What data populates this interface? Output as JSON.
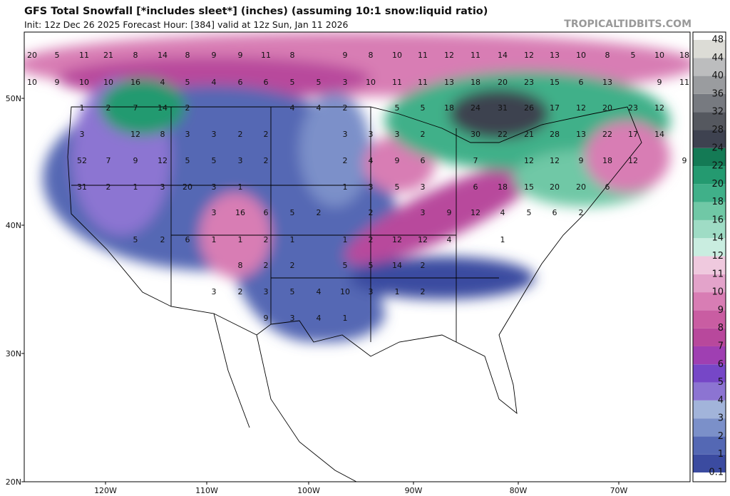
{
  "header": {
    "title": "GFS Total Snowfall [*includes sleet*] (inches) (assuming 10:1 snow:liquid ratio)",
    "subtitle": "Init: 12z Dec 26 2025   Forecast Hour: [384]   valid at 12z Sun, Jan 11 2026",
    "watermark": "TROPICALTIDBITS.COM"
  },
  "lat_labels": [
    "50N",
    "40N",
    "30N",
    "20N"
  ],
  "lon_labels": [
    "120W",
    "110W",
    "100W",
    "90W",
    "80W",
    "70W"
  ],
  "colorbar": {
    "levels": [
      0.1,
      1,
      2,
      3,
      4,
      5,
      6,
      7,
      8,
      9,
      10,
      11,
      12,
      14,
      16,
      18,
      20,
      22,
      24,
      28,
      32,
      36,
      40,
      44,
      48
    ],
    "colors": [
      "#3b4ba0",
      "#5468b4",
      "#7b90c9",
      "#a2b4da",
      "#8c74d2",
      "#7647c7",
      "#9f3fb2",
      "#b8489c",
      "#c95da2",
      "#d87db4",
      "#e3a3ca",
      "#efc9de",
      "#c9ede0",
      "#9fdcc5",
      "#70c8a6",
      "#40b089",
      "#249a70",
      "#147a55",
      "#3e4250",
      "#55585f",
      "#777a80",
      "#9a9c9f",
      "#bcbdbe",
      "#dcdcd6"
    ]
  },
  "map_labels": [
    [
      20,
      5,
      11,
      21,
      8,
      14,
      8,
      9,
      9,
      11,
      8,
      9,
      8,
      10,
      11,
      12,
      11,
      14,
      12,
      13,
      10,
      8,
      5,
      10,
      18
    ],
    [
      10,
      9,
      10,
      10,
      16,
      4,
      5,
      4,
      6,
      6,
      5,
      5,
      3,
      10,
      11,
      11,
      13,
      18,
      20,
      23,
      15,
      6,
      13,
      9,
      11
    ],
    [
      1,
      2,
      7,
      14,
      2,
      4,
      4,
      2,
      5,
      5,
      18,
      24,
      31,
      26,
      17,
      12,
      20,
      23,
      12
    ],
    [
      3,
      12,
      8,
      3,
      3,
      2,
      2,
      3,
      3,
      3,
      2,
      30,
      22,
      21,
      28,
      13,
      22,
      17,
      14
    ],
    [
      52,
      7,
      9,
      12,
      5,
      5,
      3,
      2,
      2,
      4,
      9,
      6,
      7,
      12,
      12,
      9,
      18,
      12,
      9
    ],
    [
      31,
      2,
      1,
      3,
      20,
      3,
      1,
      1,
      3,
      5,
      3,
      6,
      18,
      15,
      20,
      20,
      6
    ],
    [
      3,
      16,
      6,
      5,
      2,
      2,
      3,
      9,
      12,
      4,
      5,
      6,
      2
    ],
    [
      5,
      2,
      6,
      1,
      1,
      2,
      1,
      1,
      2,
      12,
      12,
      4,
      1
    ],
    [
      8,
      2,
      2,
      5,
      5,
      14,
      2
    ],
    [
      3,
      2,
      3,
      5,
      4,
      10,
      3,
      1,
      2
    ],
    [
      9,
      3,
      4,
      1
    ]
  ]
}
